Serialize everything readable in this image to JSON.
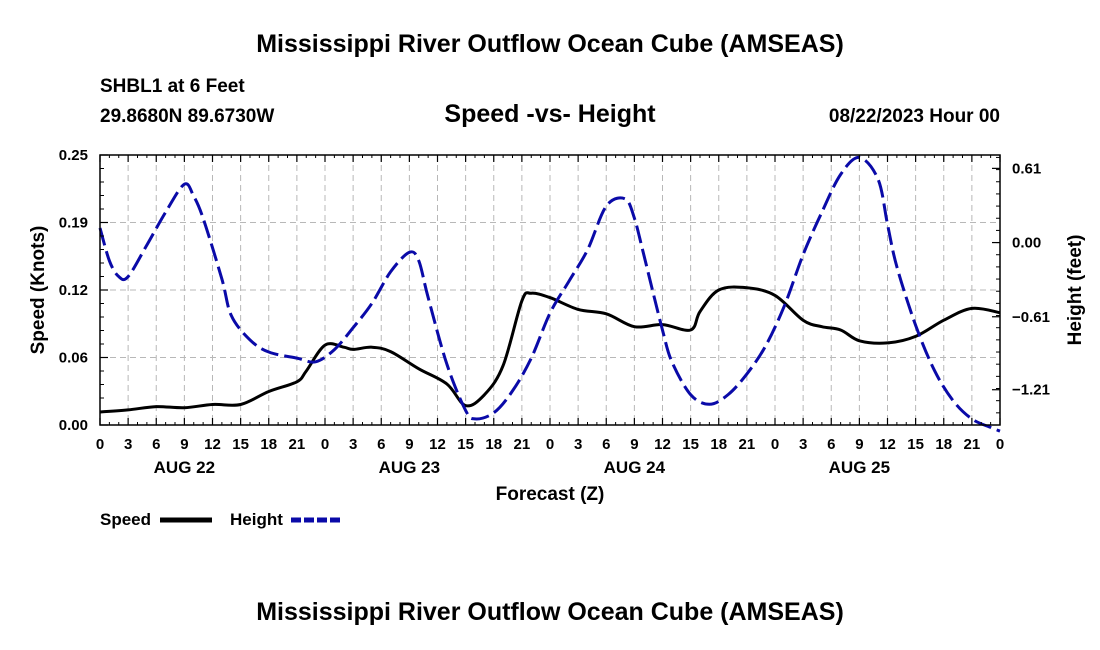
{
  "header": {
    "title": "Mississippi River Outflow Ocean Cube (AMSEAS)",
    "station": "SHBL1 at 6 Feet",
    "coords": "29.8680N  89.6730W",
    "subtitle": "Speed -vs- Height",
    "datetime": "08/22/2023 Hour 00"
  },
  "footer": {
    "title": "Mississippi River Outflow Ocean Cube (AMSEAS)"
  },
  "chart_data": {
    "type": "line",
    "title": "Speed -vs- Height",
    "xlabel": "Forecast (Z)",
    "ylabel_left": "Speed (Knots)",
    "ylabel_right": "Height (feet)",
    "xlim": [
      0,
      96
    ],
    "ylim_left": [
      0,
      0.25
    ],
    "ylim_right": [
      -1.5,
      0.72
    ],
    "grid": true,
    "x_tick_labels": [
      "0",
      "3",
      "6",
      "9",
      "12",
      "15",
      "18",
      "21",
      "0",
      "3",
      "6",
      "9",
      "12",
      "15",
      "18",
      "21",
      "0",
      "3",
      "6",
      "9",
      "12",
      "15",
      "18",
      "21",
      "0",
      "3",
      "6",
      "9",
      "12",
      "15",
      "18",
      "21",
      "0"
    ],
    "x_day_labels": [
      {
        "label": "AUG 22",
        "hour": 9
      },
      {
        "label": "AUG 23",
        "hour": 33
      },
      {
        "label": "AUG 24",
        "hour": 57
      },
      {
        "label": "AUG 25",
        "hour": 81
      }
    ],
    "left_ticks": [
      {
        "value": 0.0,
        "label": "0.00"
      },
      {
        "value": 0.0625,
        "label": "0.06"
      },
      {
        "value": 0.125,
        "label": "0.12"
      },
      {
        "value": 0.1875,
        "label": "0.19"
      },
      {
        "value": 0.25,
        "label": "0.25"
      }
    ],
    "right_ticks": [
      {
        "value": -1.21,
        "label": "−1.21"
      },
      {
        "value": -0.61,
        "label": "−0.61"
      },
      {
        "value": 0.0,
        "label": "0.00"
      },
      {
        "value": 0.61,
        "label": "0.61"
      }
    ],
    "legend_location": "bottom-left",
    "series": [
      {
        "name": "Speed",
        "axis": "left",
        "color": "#000000",
        "style": "solid",
        "x": [
          0,
          3,
          6,
          9,
          12,
          15,
          18,
          21,
          22,
          24,
          26,
          27,
          29,
          31,
          34,
          37,
          39,
          41,
          43,
          45,
          46,
          48,
          51,
          54,
          57,
          60,
          63,
          64,
          66,
          69,
          72,
          75,
          77,
          79,
          81,
          84,
          87,
          90,
          93,
          96
        ],
        "y": [
          0.012,
          0.014,
          0.017,
          0.016,
          0.019,
          0.019,
          0.031,
          0.04,
          0.05,
          0.074,
          0.072,
          0.07,
          0.072,
          0.068,
          0.052,
          0.038,
          0.018,
          0.028,
          0.055,
          0.115,
          0.122,
          0.118,
          0.107,
          0.103,
          0.091,
          0.093,
          0.088,
          0.105,
          0.125,
          0.127,
          0.12,
          0.097,
          0.091,
          0.088,
          0.078,
          0.076,
          0.082,
          0.097,
          0.108,
          0.104
        ]
      },
      {
        "name": "Height",
        "axis": "right",
        "color": "#0a0aa8",
        "style": "dashed",
        "x": [
          0,
          1,
          2,
          3,
          5,
          7,
          9,
          10,
          11,
          13,
          14,
          16,
          18,
          21,
          23,
          25,
          27,
          29,
          31,
          33,
          34,
          35,
          37,
          39,
          40,
          42,
          44,
          46,
          48,
          50,
          52,
          54,
          56,
          57,
          58,
          60,
          61,
          63,
          65,
          67,
          69,
          71,
          73,
          75,
          77,
          79,
          81,
          83,
          84,
          85,
          87,
          89,
          91,
          93,
          95,
          96
        ],
        "y": [
          0.12,
          -0.15,
          -0.28,
          -0.28,
          -0.02,
          0.25,
          0.48,
          0.38,
          0.2,
          -0.3,
          -0.6,
          -0.8,
          -0.9,
          -0.95,
          -0.98,
          -0.88,
          -0.7,
          -0.5,
          -0.24,
          -0.08,
          -0.15,
          -0.45,
          -1.0,
          -1.38,
          -1.45,
          -1.4,
          -1.22,
          -0.95,
          -0.58,
          -0.32,
          -0.06,
          0.3,
          0.36,
          0.2,
          -0.1,
          -0.72,
          -0.98,
          -1.25,
          -1.33,
          -1.25,
          -1.08,
          -0.85,
          -0.52,
          -0.1,
          0.25,
          0.56,
          0.7,
          0.52,
          0.15,
          -0.2,
          -0.68,
          -1.05,
          -1.3,
          -1.45,
          -1.52,
          -1.55
        ]
      }
    ]
  }
}
